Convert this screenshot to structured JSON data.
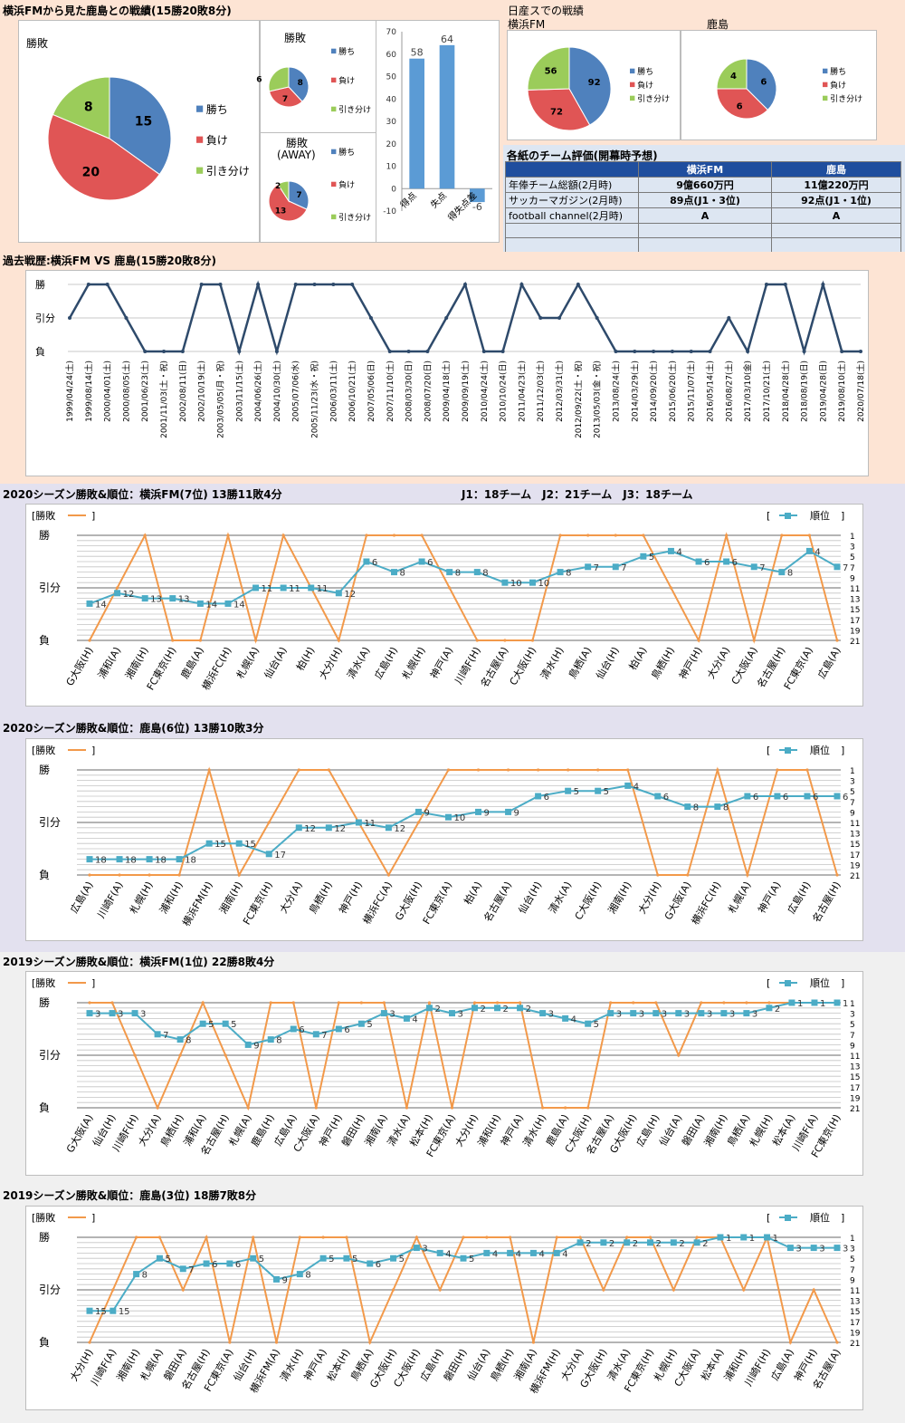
{
  "colors": {
    "win": "#4f81bd",
    "lose": "#e05555",
    "draw": "#9bcc5a",
    "rank": "#4bacc6",
    "result": "#f2994a",
    "line": "#2e4a6b",
    "bar": "#5b9bd5",
    "peach": "#fde4d4",
    "lavender": "#e3e1ef",
    "gray": "#f0f0f0"
  },
  "legend_labels": {
    "win": "勝ち",
    "lose": "負け",
    "draw": "引き分け"
  },
  "top": {
    "title": "横浜FMから見た鹿島との戦績(15勝20敗8分)",
    "pie_main": {
      "title": "勝敗",
      "values": [
        15,
        20,
        8
      ]
    },
    "pie_home": {
      "title": "勝敗",
      "values": [
        8,
        7,
        6
      ]
    },
    "pie_away": {
      "title": "勝敗\n(AWAY)",
      "title_lines": [
        "勝敗",
        "(AWAY)"
      ],
      "values": [
        7,
        13,
        2
      ]
    },
    "bar": {
      "categories": [
        "得点",
        "失点",
        "得失点差"
      ],
      "values": [
        58,
        64,
        -6
      ],
      "value_labels": [
        "58",
        "64",
        "-6"
      ],
      "yticks": [
        "70",
        "60",
        "50",
        "40",
        "30",
        "20",
        "10",
        "0",
        "-10"
      ],
      "ylim": [
        -10,
        70
      ]
    },
    "nissan": {
      "title": "日産スでの戦績",
      "team1": "横浜FM",
      "team2": "鹿島",
      "pie1": [
        92,
        72,
        56
      ],
      "pie2": [
        6,
        6,
        4
      ]
    }
  },
  "eval": {
    "title": "各紙のチーム評価(開幕時予想)",
    "headers": [
      "",
      "横浜FM",
      "鹿島"
    ],
    "rows": [
      [
        "年俸チーム総額(2月時)",
        "9億660万円",
        "11億220万円"
      ],
      [
        "サッカーマガジン(2月時)",
        "89点(J1・3位)",
        "92点(J1・1位)"
      ],
      [
        "football channel(2月時)",
        "A",
        "A"
      ],
      [
        "",
        "",
        ""
      ],
      [
        "",
        "",
        ""
      ]
    ]
  },
  "history": {
    "title": "過去戦歴:横浜FM VS 鹿島(15勝20敗8分)",
    "ylabels": [
      "勝",
      "引分",
      "負"
    ],
    "dates": [
      "1999/04/24(土)",
      "1999/08/14(土)",
      "2000/04/01(土)",
      "2000/08/05(土)",
      "2001/06/23(土)",
      "2001/11/03(土・祝)",
      "2002/08/11(日)",
      "2002/10/19(土)",
      "2003/05/05(月・祝)",
      "2003/11/15(土)",
      "2004/06/26(土)",
      "2004/10/30(土)",
      "2005/07/06(水)",
      "2005/11/23(水・祝)",
      "2006/03/11(土)",
      "2006/10/21(土)",
      "2007/05/06(日)",
      "2007/11/10(土)",
      "2008/03/30(日)",
      "2008/07/20(日)",
      "2009/04/18(土)",
      "2009/09/19(土)",
      "2010/04/24(土)",
      "2010/10/24(日)",
      "2011/04/23(土)",
      "2011/12/03(土)",
      "2012/03/31(土)",
      "2012/09/22(土・祝)",
      "2013/05/03(金・祝)",
      "2013/08/24(土)",
      "2014/03/29(土)",
      "2014/09/20(土)",
      "2015/06/20(土)",
      "2015/11/07(土)",
      "2016/05/14(土)",
      "2016/08/27(土)",
      "2017/03/10(金)",
      "2017/10/21(土)",
      "2018/04/28(土)",
      "2018/08/19(日)",
      "2019/04/28(日)",
      "2019/08/10(土)",
      "2020/07/18(土)"
    ],
    "results": [
      1,
      2,
      2,
      1,
      0,
      0,
      0,
      2,
      2,
      0,
      2,
      0,
      2,
      2,
      2,
      2,
      1,
      0,
      0,
      0,
      1,
      2,
      0,
      0,
      2,
      1,
      1,
      2,
      1,
      0,
      0,
      0,
      0,
      0,
      0,
      1,
      0,
      2,
      2,
      0,
      2,
      0,
      0
    ]
  },
  "league_note": "J1：18チーム　J2：21チーム　J3：18チーム",
  "season_common": {
    "legend_result": "[勝敗",
    "legend_rank": "[",
    "legend_rank_text": "順位",
    "bracket_close": "]",
    "ylabels": [
      "勝",
      "引分",
      "負"
    ],
    "rank_ticks": [
      "1",
      "3",
      "5",
      "7",
      "9",
      "11",
      "13",
      "15",
      "17",
      "19",
      "21"
    ]
  },
  "seasons": [
    {
      "title": "2020シーズン勝敗&順位：横浜FM(7位) 13勝11敗4分",
      "chart_data": {
        "type": "line",
        "categories": [
          "G大阪(H)",
          "浦和(A)",
          "湘南(H)",
          "FC東京(H)",
          "鹿島(A)",
          "横浜FC(H)",
          "札幌(A)",
          "仙台(A)",
          "柏(H)",
          "大分(H)",
          "清水(A)",
          "広島(H)",
          "札幌(H)",
          "神戸(A)",
          "川崎F(H)",
          "名古屋(A)",
          "C大阪(H)",
          "清水(H)",
          "鳥栖(A)",
          "仙台(H)",
          "柏(A)",
          "鳥栖(H)",
          "神戸(H)",
          "大分(A)",
          "C大阪(A)",
          "名古屋(H)",
          "FC東京(A)",
          "広島(A)"
        ],
        "results": [
          0,
          1,
          2,
          0,
          0,
          2,
          0,
          2,
          1,
          0,
          2,
          2,
          2,
          1,
          0,
          0,
          0,
          2,
          2,
          2,
          2,
          1,
          0,
          2,
          0,
          2,
          2,
          0
        ],
        "ranks": [
          14,
          12,
          13,
          13,
          14,
          14,
          11,
          11,
          11,
          12,
          6,
          8,
          6,
          8,
          8,
          10,
          10,
          8,
          7,
          7,
          5,
          4,
          6,
          6,
          7,
          8,
          4,
          7
        ]
      }
    },
    {
      "title": "2020シーズン勝敗&順位：鹿島(6位) 13勝10敗3分",
      "chart_data": {
        "type": "line",
        "categories": [
          "広島(A)",
          "川崎F(A)",
          "札幌(H)",
          "浦和(H)",
          "横浜FM(H)",
          "湘南(H)",
          "FC東京(H)",
          "大分(A)",
          "鳥栖(H)",
          "神戸(H)",
          "横浜FC(A)",
          "G大阪(H)",
          "FC東京(A)",
          "柏(A)",
          "名古屋(A)",
          "仙台(H)",
          "清水(A)",
          "C大阪(H)",
          "湘南(H)",
          "大分(H)",
          "G大阪(A)",
          "横浜FC(H)",
          "札幌(A)",
          "神戸(A)",
          "広島(H)",
          "名古屋(H)"
        ],
        "results": [
          0,
          0,
          0,
          0,
          2,
          0,
          1,
          2,
          2,
          1,
          0,
          1,
          2,
          2,
          2,
          2,
          2,
          2,
          2,
          0,
          0,
          2,
          0,
          2,
          2,
          0
        ],
        "ranks": [
          18,
          18,
          18,
          18,
          15,
          15,
          17,
          12,
          12,
          11,
          12,
          9,
          10,
          9,
          9,
          6,
          5,
          5,
          4,
          6,
          8,
          8,
          6,
          6,
          6,
          6
        ]
      }
    },
    {
      "title": "2019シーズン勝敗&順位：横浜FM(1位) 22勝8敗4分",
      "chart_data": {
        "type": "line",
        "categories": [
          "G大阪(A)",
          "仙台(H)",
          "川崎F(H)",
          "大分(A)",
          "鳥栖(H)",
          "浦和(A)",
          "名古屋(H)",
          "札幌(A)",
          "鹿島(H)",
          "広島(A)",
          "C大阪(A)",
          "神戸(H)",
          "磐田(H)",
          "湘南(A)",
          "清水(A)",
          "松本(H)",
          "FC東京(A)",
          "大分(H)",
          "浦和(H)",
          "神戸(A)",
          "清水(H)",
          "鹿島(A)",
          "C大阪(H)",
          "名古屋(A)",
          "G大阪(H)",
          "広島(H)",
          "仙台(A)",
          "磐田(A)",
          "湘南(H)",
          "鳥栖(A)",
          "札幌(H)",
          "松本(A)",
          "川崎F(A)",
          "FC東京(H)"
        ],
        "results": [
          2,
          2,
          1,
          0,
          1,
          2,
          1,
          0,
          2,
          2,
          0,
          2,
          2,
          2,
          0,
          2,
          0,
          2,
          2,
          2,
          0,
          0,
          0,
          2,
          2,
          2,
          1,
          2,
          2,
          2,
          2,
          2,
          2,
          2
        ],
        "ranks": [
          3,
          3,
          3,
          7,
          8,
          5,
          5,
          9,
          8,
          6,
          7,
          6,
          5,
          3,
          4,
          2,
          3,
          2,
          2,
          2,
          3,
          4,
          5,
          3,
          3,
          3,
          3,
          3,
          3,
          3,
          2,
          1,
          1,
          1
        ]
      }
    },
    {
      "title": "2019シーズン勝敗&順位：鹿島(3位) 18勝7敗8分",
      "chart_data": {
        "type": "line",
        "categories": [
          "大分(H)",
          "川崎F(A)",
          "湘南(H)",
          "札幌(A)",
          "磐田(A)",
          "名古屋(H)",
          "FC東京(A)",
          "仙台(H)",
          "横浜FM(A)",
          "清水(H)",
          "神戸(A)",
          "松本(H)",
          "鳥栖(A)",
          "G大阪(H)",
          "C大阪(H)",
          "広島(H)",
          "磐田(H)",
          "仙台(A)",
          "鳥栖(H)",
          "湘南(A)",
          "横浜FM(H)",
          "大分(A)",
          "G大阪(H)",
          "清水(A)",
          "FC東京(H)",
          "札幌(H)",
          "C大阪(A)",
          "松本(A)",
          "浦和(H)",
          "川崎F(H)",
          "広島(A)",
          "神戸(H)",
          "名古屋(A)"
        ],
        "results": [
          0,
          1,
          2,
          2,
          1,
          2,
          0,
          2,
          0,
          2,
          2,
          2,
          0,
          1,
          2,
          1,
          2,
          2,
          2,
          0,
          2,
          2,
          1,
          2,
          2,
          1,
          2,
          2,
          1,
          2,
          0,
          1,
          0
        ],
        "ranks": [
          15,
          15,
          8,
          5,
          7,
          6,
          6,
          5,
          9,
          8,
          5,
          5,
          6,
          5,
          3,
          4,
          5,
          4,
          4,
          4,
          4,
          2,
          2,
          2,
          2,
          2,
          2,
          1,
          1,
          1,
          3,
          3,
          3
        ]
      }
    }
  ]
}
